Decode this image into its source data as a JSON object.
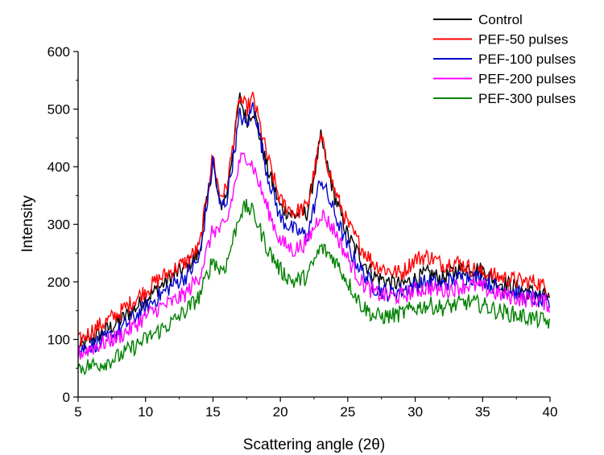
{
  "chart_data": {
    "type": "line",
    "xlabel": "Scattering angle (2θ)",
    "ylabel": "Intensity",
    "xlim": [
      5,
      40
    ],
    "ylim": [
      0,
      600
    ],
    "xticks": [
      5,
      10,
      15,
      20,
      25,
      30,
      35,
      40
    ],
    "yticks": [
      0,
      100,
      200,
      300,
      400,
      500,
      600
    ],
    "grid": false,
    "legend_position": "top-right",
    "x": [
      5,
      6,
      7,
      8,
      9,
      10,
      11,
      12,
      13,
      14,
      15,
      15.5,
      16,
      17,
      17.5,
      18,
      19,
      20,
      21,
      22,
      23,
      24,
      25,
      26,
      27,
      28,
      29,
      30,
      31,
      32,
      33,
      34,
      35,
      36,
      37,
      38,
      39,
      40
    ],
    "series": [
      {
        "name": "Control",
        "color": "#000000",
        "values": [
          85,
          100,
          115,
          130,
          150,
          170,
          190,
          210,
          225,
          250,
          410,
          330,
          350,
          520,
          480,
          500,
          400,
          330,
          315,
          320,
          450,
          350,
          280,
          240,
          210,
          200,
          195,
          205,
          215,
          205,
          220,
          225,
          220,
          200,
          195,
          185,
          180,
          170
        ]
      },
      {
        "name": "PEF-50 pulses",
        "color": "#ff0000",
        "values": [
          95,
          115,
          130,
          145,
          165,
          185,
          205,
          220,
          235,
          260,
          420,
          350,
          360,
          520,
          500,
          520,
          420,
          340,
          320,
          330,
          450,
          360,
          300,
          260,
          230,
          220,
          215,
          240,
          245,
          230,
          235,
          225,
          215,
          210,
          205,
          200,
          200,
          185
        ]
      },
      {
        "name": "PEF-100 pulses",
        "color": "#0000cc",
        "values": [
          80,
          90,
          100,
          115,
          135,
          155,
          175,
          195,
          210,
          240,
          410,
          330,
          340,
          490,
          470,
          510,
          390,
          310,
          290,
          280,
          380,
          320,
          260,
          220,
          190,
          180,
          185,
          195,
          200,
          195,
          205,
          210,
          205,
          190,
          185,
          175,
          170,
          160
        ]
      },
      {
        "name": "PEF-200 pulses",
        "color": "#ff00ff",
        "values": [
          75,
          85,
          95,
          105,
          120,
          140,
          155,
          165,
          180,
          210,
          290,
          290,
          300,
          410,
          420,
          400,
          330,
          270,
          255,
          270,
          320,
          290,
          240,
          200,
          180,
          175,
          175,
          185,
          190,
          185,
          190,
          195,
          190,
          180,
          175,
          170,
          170,
          160
        ]
      },
      {
        "name": "PEF-300 pulses",
        "color": "#008000",
        "values": [
          50,
          55,
          60,
          70,
          85,
          100,
          115,
          130,
          150,
          175,
          240,
          220,
          230,
          320,
          330,
          320,
          260,
          220,
          200,
          210,
          260,
          240,
          200,
          160,
          140,
          140,
          145,
          155,
          160,
          155,
          160,
          165,
          160,
          150,
          145,
          140,
          135,
          130
        ]
      }
    ]
  }
}
